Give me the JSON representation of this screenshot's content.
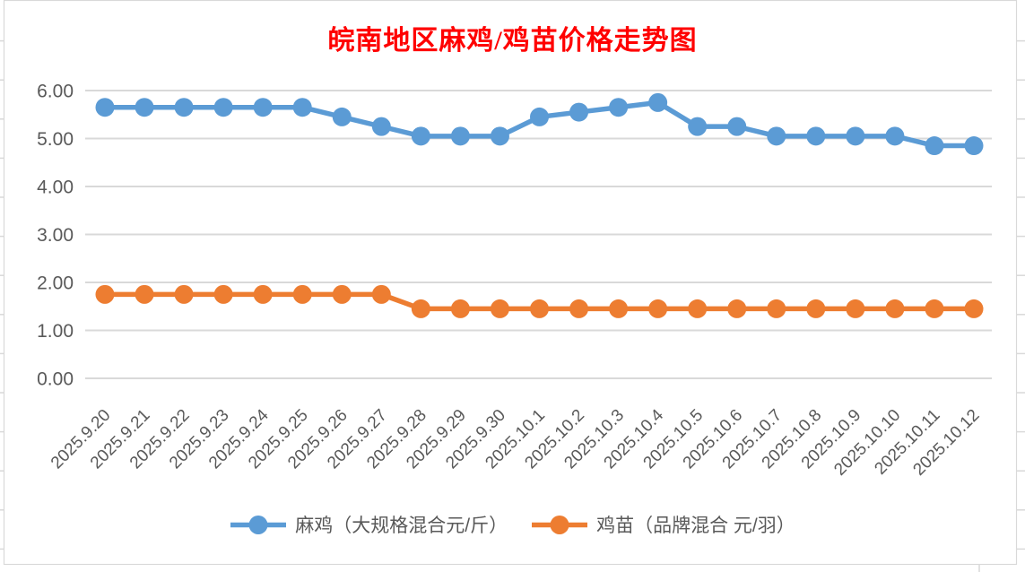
{
  "chart": {
    "panel_background": "#FFFFFF",
    "border_color": "#D9D9D9",
    "gridline_color": "#D9D9D9",
    "axis_text_color": "#595959",
    "title_color": "#FF0000"
  },
  "chart_data": {
    "type": "line",
    "title": "皖南地区麻鸡/鸡苗价格走势图",
    "categories": [
      "2025.9.20",
      "2025.9.21",
      "2025.9.22",
      "2025.9.23",
      "2025.9.24",
      "2025.9.25",
      "2025.9.26",
      "2025.9.27",
      "2025.9.28",
      "2025.9.29",
      "2025.9.30",
      "2025.10.1",
      "2025.10.2",
      "2025.10.3",
      "2025.10.4",
      "2025.10.5",
      "2025.10.6",
      "2025.10.7",
      "2025.10.8",
      "2025.10.9",
      "2025.10.10",
      "2025.10.11",
      "2025.10.12"
    ],
    "series": [
      {
        "name": "麻鸡（大规格混合元/斤）",
        "color": "#5B9BD5",
        "values": [
          5.65,
          5.65,
          5.65,
          5.65,
          5.65,
          5.65,
          5.45,
          5.25,
          5.05,
          5.05,
          5.05,
          5.45,
          5.55,
          5.65,
          5.75,
          5.25,
          5.25,
          5.05,
          5.05,
          5.05,
          5.05,
          4.85,
          4.85
        ]
      },
      {
        "name": "鸡苗（品牌混合 元/羽）",
        "color": "#ED7D31",
        "values": [
          1.75,
          1.75,
          1.75,
          1.75,
          1.75,
          1.75,
          1.75,
          1.75,
          1.45,
          1.45,
          1.45,
          1.45,
          1.45,
          1.45,
          1.45,
          1.45,
          1.45,
          1.45,
          1.45,
          1.45,
          1.45,
          1.45,
          1.45
        ]
      }
    ],
    "xlabel": "",
    "ylabel": "",
    "ylim": [
      0,
      6
    ],
    "ytick_labels": [
      "0.00",
      "1.00",
      "2.00",
      "3.00",
      "4.00",
      "5.00",
      "6.00"
    ],
    "grid": true,
    "legend_position": "bottom",
    "x_label_rotation_deg": 45
  }
}
